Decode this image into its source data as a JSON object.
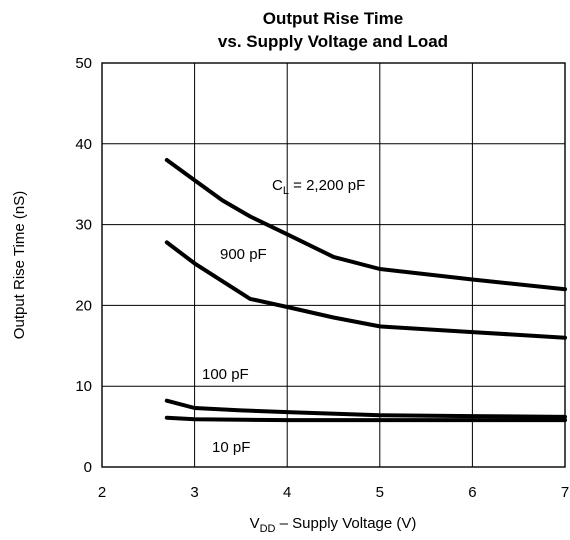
{
  "chart_data": {
    "type": "line",
    "title_line1": "Output Rise Time",
    "title_line2": "vs. Supply Voltage and Load",
    "xlabel_main": "V",
    "xlabel_sub": "DD",
    "xlabel_rest": " – Supply Voltage (V)",
    "ylabel": "Output Rise Time (nS)",
    "xlim": [
      2,
      7
    ],
    "ylim": [
      0,
      50
    ],
    "x_ticks": [
      "2",
      "3",
      "4",
      "5",
      "6",
      "7"
    ],
    "y_ticks": [
      "0",
      "10",
      "20",
      "30",
      "40",
      "50"
    ],
    "grid": true,
    "series": [
      {
        "name": "C_L = 2,200 pF",
        "x": [
          2.7,
          3.0,
          3.3,
          3.6,
          4.0,
          4.5,
          5.0,
          6.0,
          7.0
        ],
        "y": [
          38.0,
          35.5,
          33.0,
          31.0,
          28.8,
          26.0,
          24.5,
          23.2,
          22.0
        ]
      },
      {
        "name": "900 pF",
        "x": [
          2.7,
          3.0,
          3.3,
          3.6,
          4.0,
          4.5,
          5.0,
          6.0,
          7.0
        ],
        "y": [
          27.8,
          25.2,
          23.0,
          20.8,
          19.8,
          18.5,
          17.4,
          16.7,
          16.0
        ]
      },
      {
        "name": "100 pF",
        "x": [
          2.7,
          3.0,
          3.5,
          4.0,
          5.0,
          6.0,
          7.0
        ],
        "y": [
          8.2,
          7.3,
          7.0,
          6.8,
          6.4,
          6.3,
          6.2
        ]
      },
      {
        "name": "10 pF",
        "x": [
          2.7,
          3.0,
          4.0,
          5.0,
          6.0,
          7.0
        ],
        "y": [
          6.1,
          5.9,
          5.8,
          5.8,
          5.8,
          5.8
        ]
      }
    ],
    "annotations": {
      "cl_main": "C",
      "cl_sub": "L",
      "cl_rest": " = 2,200 pF",
      "label_900": "900 pF",
      "label_100": "100 pF",
      "label_10": "10 pF"
    }
  }
}
